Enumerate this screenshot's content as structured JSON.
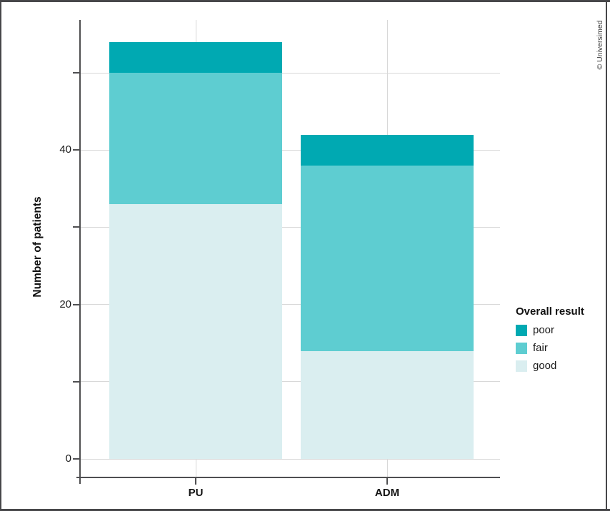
{
  "figure": {
    "credit": "© Universimed",
    "background": "#ffffff",
    "frame_color": "#47474a"
  },
  "chart_data": {
    "type": "bar",
    "stacked": true,
    "title": "",
    "categories": [
      "PU",
      "ADM"
    ],
    "series": [
      {
        "name": "good",
        "color": "#daeef0",
        "values": [
          33,
          14
        ]
      },
      {
        "name": "fair",
        "color": "#5ecdd1",
        "values": [
          17,
          24
        ]
      },
      {
        "name": "poor",
        "color": "#00a9b2",
        "values": [
          4,
          4
        ]
      }
    ],
    "stack_totals": [
      54,
      42
    ],
    "xlabel": "",
    "ylabel": "Number of patients",
    "ylim": [
      0,
      57
    ],
    "yticks_labeled": [
      "0",
      "20",
      "40"
    ],
    "yticks_minor": [
      10,
      30,
      50
    ],
    "grid": true,
    "legend": {
      "title": "Overall result",
      "position": "right",
      "entries": [
        "poor",
        "fair",
        "good"
      ]
    },
    "axis_color": "#4f4f51",
    "grid_color": "#d8d8d8",
    "text_color": "#191919"
  }
}
